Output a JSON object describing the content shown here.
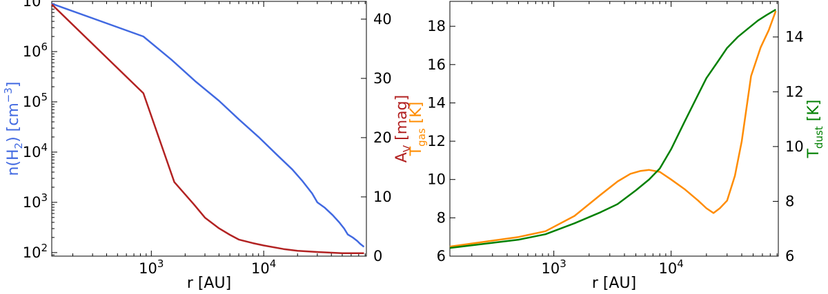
{
  "chart_data": [
    {
      "type": "line",
      "xlabel": "r [AU]",
      "x_scale": "log",
      "xlim": [
        130,
        82000
      ],
      "x_ticks": [
        1000,
        10000
      ],
      "x_tick_labels": [
        {
          "base": "10",
          "exp": "3"
        },
        {
          "base": "10",
          "exp": "4"
        }
      ],
      "y_left": {
        "label_parts": [
          {
            "t": "n(H"
          },
          {
            "t": "2",
            "sub": true
          },
          {
            "t": ") [cm"
          },
          {
            "t": "−3",
            "sup": true
          },
          {
            "t": "]"
          }
        ],
        "color": "#4169e1",
        "scale": "log",
        "lim": [
          85,
          10000000
        ],
        "ticks": [
          100,
          1000,
          10000,
          100000,
          1000000,
          10000000
        ],
        "tick_labels": [
          {
            "base": "10",
            "exp": "2"
          },
          {
            "base": "10",
            "exp": "3"
          },
          {
            "base": "10",
            "exp": "4"
          },
          {
            "base": "10",
            "exp": "5"
          },
          {
            "base": "10",
            "exp": "6"
          },
          {
            "base": "10",
            "exp": "7"
          }
        ]
      },
      "y_right": {
        "label_parts": [
          {
            "t": "A"
          },
          {
            "t": "V",
            "sub": true
          },
          {
            "t": " [mag]"
          }
        ],
        "color": "#b22222",
        "scale": "linear",
        "lim": [
          0,
          43
        ],
        "ticks": [
          0,
          10,
          20,
          30,
          40
        ],
        "tick_labels": [
          "0",
          "10",
          "20",
          "30",
          "40"
        ]
      },
      "series": [
        {
          "axis": "left",
          "color": "#4169e1",
          "x": [
            130,
            850,
            1500,
            2500,
            4000,
            6000,
            9000,
            13000,
            18000,
            22000,
            27000,
            30000,
            35000,
            41000,
            47000,
            52000,
            56000,
            62000,
            68000,
            72000,
            78000
          ],
          "y": [
            9000000,
            2000000,
            700000,
            250000,
            105000,
            45000,
            20000,
            9000,
            4500,
            2700,
            1500,
            1000,
            780,
            560,
            400,
            300,
            230,
            200,
            170,
            150,
            130
          ]
        },
        {
          "axis": "right",
          "color": "#b22222",
          "x": [
            130,
            850,
            1600,
            2400,
            3000,
            4000,
            5000,
            6000,
            8000,
            10000,
            15000,
            20000,
            30000,
            50000,
            78000
          ],
          "y": [
            42.5,
            27.5,
            12.5,
            8.7,
            6.5,
            4.7,
            3.6,
            2.8,
            2.2,
            1.8,
            1.2,
            0.9,
            0.7,
            0.5,
            0.5
          ]
        }
      ]
    },
    {
      "type": "line",
      "xlabel": "r [AU]",
      "x_scale": "log",
      "xlim": [
        130,
        82000
      ],
      "x_ticks": [
        1000,
        10000
      ],
      "x_tick_labels": [
        {
          "base": "10",
          "exp": "3"
        },
        {
          "base": "10",
          "exp": "4"
        }
      ],
      "y_left": {
        "label_parts": [
          {
            "t": "T"
          },
          {
            "t": "gas",
            "sub": true
          },
          {
            "t": " [K]"
          }
        ],
        "color": "#ff8c00",
        "scale": "linear",
        "lim": [
          6,
          19.3
        ],
        "ticks": [
          6,
          8,
          10,
          12,
          14,
          16,
          18
        ],
        "tick_labels": [
          "6",
          "8",
          "10",
          "12",
          "14",
          "16",
          "18"
        ]
      },
      "y_right": {
        "label_parts": [
          {
            "t": "T"
          },
          {
            "t": "dust",
            "sub": true
          },
          {
            "t": " [K]"
          }
        ],
        "color": "#008000",
        "scale": "linear",
        "lim": [
          6,
          15.3
        ],
        "ticks": [
          6,
          8,
          10,
          12,
          14
        ],
        "tick_labels": [
          "6",
          "8",
          "10",
          "12",
          "14"
        ]
      },
      "series": [
        {
          "axis": "left",
          "color": "#ff8c00",
          "x": [
            130,
            500,
            850,
            1500,
            2500,
            3500,
            4500,
            5500,
            6500,
            8000,
            10000,
            13000,
            17000,
            20000,
            23000,
            26000,
            30000,
            35000,
            40000,
            48000,
            58000,
            68000,
            78000
          ],
          "y": [
            6.5,
            7.0,
            7.3,
            8.1,
            9.2,
            9.9,
            10.3,
            10.45,
            10.5,
            10.4,
            10.0,
            9.5,
            8.9,
            8.5,
            8.25,
            8.5,
            8.9,
            10.2,
            12.0,
            15.4,
            16.9,
            17.8,
            18.8
          ]
        },
        {
          "axis": "right",
          "color": "#008000",
          "x": [
            130,
            500,
            850,
            1500,
            2500,
            3500,
            5000,
            6500,
            8000,
            10000,
            13000,
            17000,
            20000,
            25000,
            30000,
            37000,
            45000,
            55000,
            65000,
            78000
          ],
          "y": [
            6.3,
            6.6,
            6.8,
            7.2,
            7.6,
            7.9,
            8.4,
            8.8,
            9.2,
            9.9,
            10.9,
            11.9,
            12.5,
            13.1,
            13.6,
            14.0,
            14.3,
            14.6,
            14.8,
            15.0
          ]
        }
      ]
    }
  ]
}
